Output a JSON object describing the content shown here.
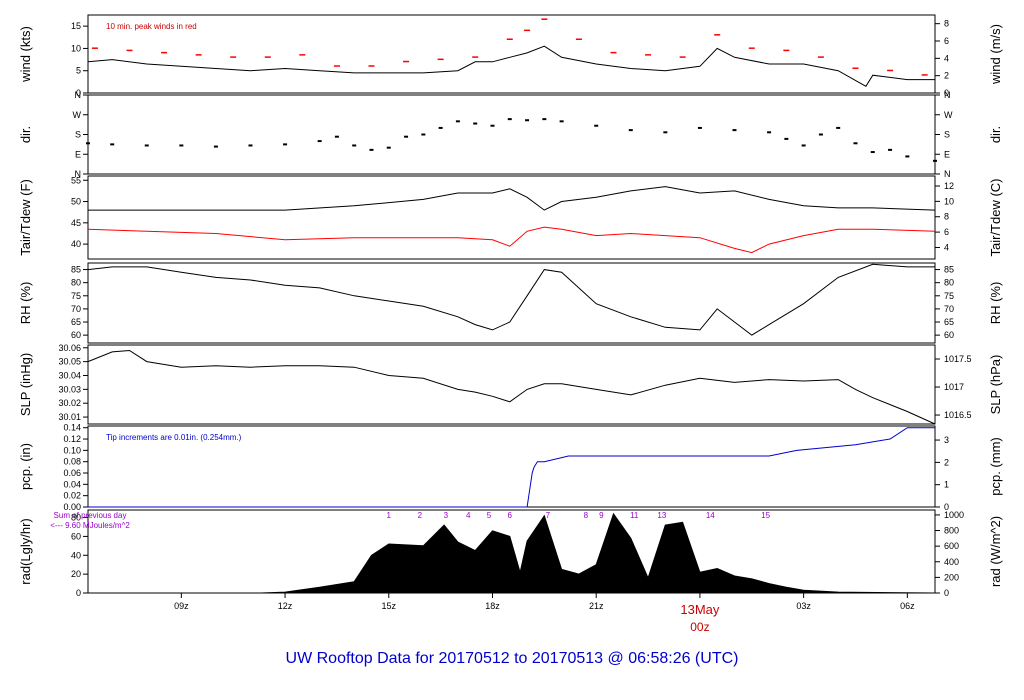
{
  "title": "UW Rooftop Data for 20170512  to  20170513 @ 06:58:26  (UTC)",
  "x_axis": {
    "ticks": [
      "09z",
      "12z",
      "15z",
      "18z",
      "21z",
      "03z",
      "06z"
    ],
    "midnight_label": "13May",
    "midnight_sublabel": "00z"
  },
  "chart_data": [
    {
      "type": "line",
      "ylabel": "wind (kts)",
      "ylabel_right": "wind (m/s)",
      "ylim": [
        0,
        17.5
      ],
      "yticks": [
        0,
        5,
        10,
        15
      ],
      "right_ylim": [
        0,
        9
      ],
      "right_yticks": [
        0,
        2,
        4,
        6,
        8
      ],
      "annotation": "10 min. peak winds in red",
      "series": [
        {
          "name": "wind",
          "color": "#000000",
          "x": [
            6.3,
            7,
            8,
            9,
            10,
            11,
            12,
            13,
            14,
            15,
            16,
            17,
            17.5,
            18,
            18.5,
            19,
            19.5,
            20,
            21,
            22,
            23,
            24,
            24.5,
            25,
            26,
            27,
            28,
            28.8,
            29,
            30,
            30.8
          ],
          "y": [
            7,
            7.5,
            6.5,
            6,
            5.5,
            5,
            5.5,
            5,
            4.5,
            4.5,
            4.5,
            5,
            7,
            7,
            8,
            9,
            10.5,
            8,
            6.5,
            5.5,
            5,
            6,
            10,
            8,
            6.5,
            6.5,
            5,
            1.5,
            4,
            3,
            3
          ]
        },
        {
          "name": "10 min. peak winds",
          "color": "#ff0000",
          "x": [
            6.5,
            7.5,
            8.5,
            9.5,
            10.5,
            11.5,
            12.5,
            13.5,
            14.5,
            15.5,
            16.5,
            17.5,
            18.5,
            19,
            19.5,
            20.5,
            21.5,
            22.5,
            23.5,
            24.5,
            25.5,
            26.5,
            27.5,
            28.5,
            29.5,
            30.5
          ],
          "y": [
            10,
            9.5,
            9,
            8.5,
            8,
            8,
            8.5,
            6,
            6,
            7,
            7.5,
            8,
            12,
            14,
            16.5,
            12,
            9,
            8.5,
            8,
            13,
            10,
            9.5,
            8,
            5.5,
            5,
            4
          ]
        }
      ]
    },
    {
      "type": "scatter",
      "ylabel": "dir.",
      "ylabel_right": "dir.",
      "ylim": [
        0,
        360
      ],
      "yticklabels": [
        "N",
        "E",
        "S",
        "W",
        "N"
      ],
      "yticks": [
        0,
        90,
        180,
        270,
        360
      ],
      "series": [
        {
          "name": "dir",
          "color": "#000000",
          "x": [
            6.3,
            7,
            8,
            9,
            10,
            11,
            12,
            13,
            13.5,
            14,
            14.5,
            15,
            15.5,
            16,
            16.5,
            17,
            17.5,
            18,
            18.5,
            19,
            19.5,
            20,
            21,
            22,
            23,
            24,
            25,
            26,
            26.5,
            27,
            27.5,
            28,
            28.5,
            29,
            29.5,
            30,
            30.8
          ],
          "y": [
            140,
            135,
            130,
            130,
            125,
            130,
            135,
            150,
            170,
            130,
            110,
            120,
            170,
            180,
            210,
            240,
            230,
            220,
            250,
            245,
            250,
            240,
            220,
            200,
            190,
            210,
            200,
            190,
            160,
            130,
            180,
            210,
            140,
            100,
            110,
            80,
            60
          ]
        }
      ]
    },
    {
      "type": "line",
      "ylabel": "Tair/Tdew (F)",
      "ylabel_right": "Tair/Tdew (C)",
      "ylim": [
        36.5,
        56
      ],
      "yticks": [
        40,
        45,
        50,
        55
      ],
      "right_ylim": [
        2.5,
        13.3
      ],
      "right_yticks": [
        4,
        6,
        8,
        10,
        12
      ],
      "series": [
        {
          "name": "Tair",
          "color": "#000000",
          "x": [
            6.3,
            8,
            10,
            12,
            14,
            16,
            17,
            18,
            18.5,
            19,
            19.5,
            20,
            21,
            22,
            23,
            24,
            25,
            26,
            27,
            28,
            29,
            30.8
          ],
          "y": [
            48,
            48,
            48,
            48,
            49,
            50.5,
            52,
            52,
            53,
            51,
            48,
            50,
            51,
            52.5,
            53.5,
            52,
            52.5,
            50.5,
            49,
            48.5,
            48.5,
            48
          ]
        },
        {
          "name": "Tdew",
          "color": "#ff0000",
          "x": [
            6.3,
            8,
            10,
            12,
            14,
            16,
            17,
            18,
            18.5,
            19,
            19.5,
            20,
            21,
            22,
            23,
            24,
            25,
            25.5,
            26,
            27,
            28,
            29,
            30.8
          ],
          "y": [
            43.5,
            43,
            42.5,
            41,
            41.5,
            41.5,
            41.5,
            41,
            39.5,
            43,
            44,
            43.5,
            42,
            42.5,
            42,
            41.5,
            39,
            38,
            40,
            42,
            43.5,
            43.5,
            43
          ]
        }
      ]
    },
    {
      "type": "line",
      "ylabel": "RH (%)",
      "ylabel_right": "RH (%)",
      "ylim": [
        57,
        87.5
      ],
      "yticks": [
        60,
        65,
        70,
        75,
        80,
        85
      ],
      "series": [
        {
          "name": "RH",
          "color": "#000000",
          "x": [
            6.3,
            7,
            8,
            9,
            10,
            11,
            12,
            13,
            14,
            15,
            16,
            17,
            17.5,
            18,
            18.5,
            19,
            19.5,
            20,
            21,
            22,
            23,
            24,
            24.5,
            25,
            25.5,
            26,
            27,
            28,
            29,
            30,
            30.8
          ],
          "y": [
            85,
            86,
            86,
            84,
            82,
            81,
            79,
            78,
            75,
            73,
            71,
            67,
            64,
            62,
            65,
            75,
            85,
            84,
            72,
            67,
            63,
            62,
            70,
            65,
            60,
            64,
            72,
            82,
            87,
            86,
            86
          ]
        }
      ]
    },
    {
      "type": "line",
      "ylabel": "SLP (inHg)",
      "ylabel_right": "SLP (hPa)",
      "ylim": [
        30.005,
        30.062
      ],
      "yticks": [
        30.01,
        30.02,
        30.03,
        30.04,
        30.05,
        30.06
      ],
      "right_ylim": [
        1016.34,
        1017.75
      ],
      "right_ytickvalues": [
        1016.5,
        1017,
        1017.5
      ],
      "right_yticklabels": [
        "1016.5",
        "1017",
        "1017.5"
      ],
      "series": [
        {
          "name": "SLP",
          "color": "#000000",
          "x": [
            6.3,
            7,
            7.5,
            8,
            9,
            10,
            11,
            12,
            13,
            14,
            15,
            16,
            17,
            17.5,
            18,
            18.5,
            19,
            19.5,
            20,
            21,
            22,
            23,
            24,
            25,
            26,
            27,
            28,
            28.5,
            29,
            30,
            30.8
          ],
          "y": [
            30.05,
            30.057,
            30.058,
            30.05,
            30.046,
            30.047,
            30.046,
            30.047,
            30.047,
            30.046,
            30.04,
            30.038,
            30.03,
            30.028,
            30.025,
            30.021,
            30.03,
            30.034,
            30.034,
            30.03,
            30.026,
            30.033,
            30.038,
            30.035,
            30.037,
            30.036,
            30.037,
            30.03,
            30.024,
            30.014,
            30.005
          ]
        }
      ]
    },
    {
      "type": "line",
      "ylabel": "pcp. (in)",
      "ylabel_right": "pcp. (mm)",
      "ylim": [
        0,
        0.143
      ],
      "yticks": [
        0,
        0.02,
        0.04,
        0.06,
        0.08,
        0.1,
        0.12,
        0.14
      ],
      "yticklabels": [
        "0.00",
        "0.02",
        "0.04",
        "0.06",
        "0.08",
        "0.10",
        "0.12",
        "0.14"
      ],
      "right_ylim": [
        0,
        3.63
      ],
      "right_yticks": [
        0,
        1,
        2,
        3
      ],
      "annotation": "Tip increments are 0.01in. (0.254mm.)",
      "series": [
        {
          "name": "pcp",
          "color": "#0000cc",
          "x": [
            6.3,
            19.0,
            19.05,
            19.15,
            19.2,
            19.3,
            19.5,
            20.2,
            26.0,
            26.8,
            28.5,
            29.5,
            30.0,
            30.8
          ],
          "y": [
            0,
            0,
            0.02,
            0.06,
            0.07,
            0.08,
            0.08,
            0.09,
            0.09,
            0.1,
            0.11,
            0.12,
            0.14,
            0.14
          ]
        }
      ]
    },
    {
      "type": "area",
      "ylabel": "rad(Lgly/hr)",
      "ylabel_right": "rad (W/m^2)",
      "ylim": [
        0,
        88
      ],
      "yticks": [
        0,
        20,
        40,
        60,
        80
      ],
      "right_ylim": [
        0,
        1063
      ],
      "right_yticks": [
        0,
        200,
        400,
        600,
        800,
        1000
      ],
      "annotations": [
        "Sum of previous day",
        "<--- 9.60 MJoules/m^2"
      ],
      "peak_labels": [
        "1",
        "2",
        "3",
        "4",
        "5",
        "6",
        "7",
        "8",
        "9",
        "11",
        "13",
        "14",
        "15"
      ],
      "series": [
        {
          "name": "rad",
          "color": "#000000",
          "x": [
            6.3,
            11.3,
            12.0,
            13.0,
            14.0,
            14.5,
            15.0,
            16.0,
            16.6,
            17.0,
            17.5,
            18.0,
            18.5,
            18.8,
            19.0,
            19.5,
            20.0,
            20.5,
            21.0,
            21.5,
            22.0,
            22.5,
            23.0,
            23.5,
            24.0,
            24.5,
            25.0,
            25.5,
            26.0,
            26.5,
            27.0,
            28.0,
            30.8
          ],
          "y": [
            0,
            0,
            1,
            6,
            12,
            40,
            52,
            50,
            72,
            54,
            45,
            66,
            60,
            22,
            55,
            82,
            25,
            20,
            30,
            84,
            58,
            16,
            72,
            75,
            22,
            26,
            18,
            15,
            10,
            6,
            3,
            1,
            0
          ]
        }
      ]
    }
  ]
}
